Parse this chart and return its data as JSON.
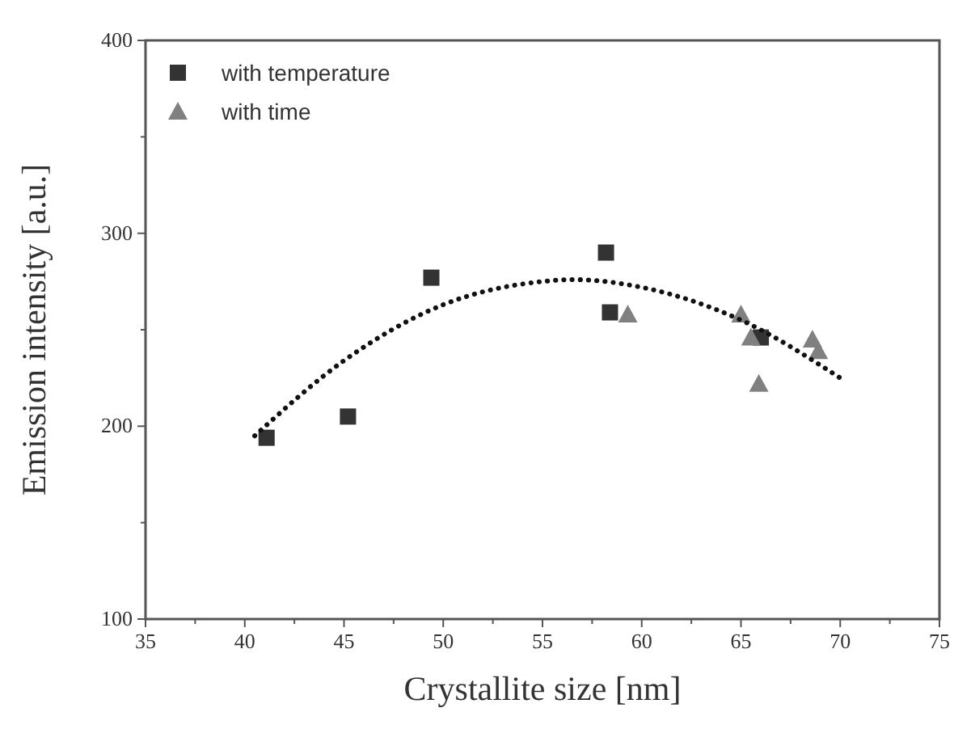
{
  "chart_data": {
    "type": "scatter",
    "xlabel": "Crystallite size [nm]",
    "ylabel": "Emission intensity [a.u.]",
    "xlim": [
      35,
      75
    ],
    "xticks": [
      35,
      40,
      45,
      50,
      55,
      60,
      65,
      70,
      75
    ],
    "ylim": [
      100,
      400
    ],
    "yticks": [
      100,
      200,
      300,
      400
    ],
    "grid": false,
    "legend": "top left",
    "series": [
      {
        "name": "with temperature",
        "color": "#333333",
        "marker": "square",
        "x": [
          41.1,
          45.2,
          49.4,
          58.2,
          58.4,
          66.0
        ],
        "values": [
          194,
          205,
          277,
          290,
          259,
          246
        ]
      },
      {
        "name": "with time",
        "color": "#808080",
        "marker": "triangle",
        "x": [
          59.3,
          65.0,
          65.5,
          65.9,
          68.6,
          68.9
        ],
        "values": [
          258,
          258,
          246,
          222,
          245,
          239
        ]
      },
      {
        "type": "line",
        "color": "#111111",
        "line_style": "dotted",
        "marker": "none",
        "x": [
          40.5,
          45,
          50,
          55,
          56.5,
          60,
          65,
          70
        ],
        "values": [
          195,
          234,
          263,
          275,
          276,
          272,
          255,
          225
        ]
      }
    ]
  }
}
